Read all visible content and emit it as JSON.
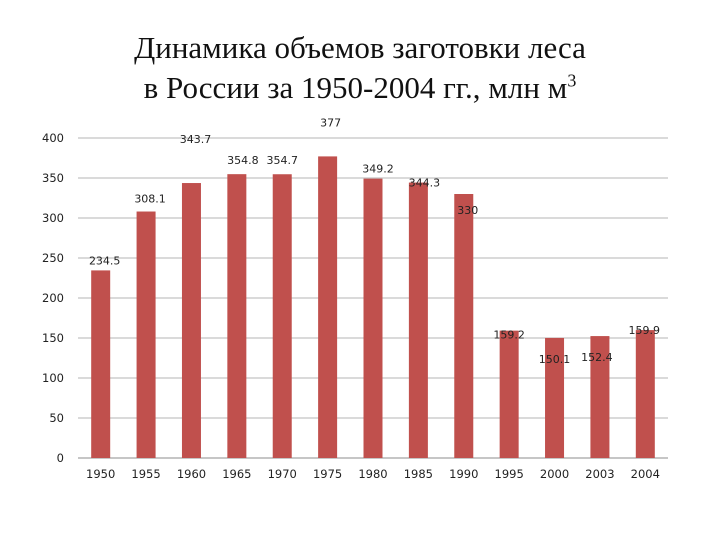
{
  "chart_data": {
    "type": "bar",
    "title_line1": "Динамика объемов заготовки леса",
    "title_line2": "в России за 1950-2004 гг., млн м",
    "title_superscript": "3",
    "xlabel": "",
    "ylabel": "",
    "ylim": [
      0,
      400
    ],
    "yticks": [
      0,
      50,
      100,
      150,
      200,
      250,
      300,
      350,
      400
    ],
    "grid": true,
    "legend": "none",
    "bar_color": "#c0504d",
    "categories": [
      "1950",
      "1955",
      "1960",
      "1965",
      "1970",
      "1975",
      "1980",
      "1985",
      "1990",
      "1995",
      "2000",
      "2003",
      "2004"
    ],
    "values": [
      234.5,
      308.1,
      343.7,
      354.8,
      354.7,
      377,
      349.2,
      344.3,
      330,
      159.2,
      150.1,
      152.4,
      159.9
    ],
    "data_labels": [
      "234.5",
      "308.1",
      "343.7",
      "354.8",
      "354.7",
      "377",
      "349.2",
      "344.3",
      "330",
      "159.2",
      "150.1",
      "152.4",
      "159.9"
    ]
  }
}
